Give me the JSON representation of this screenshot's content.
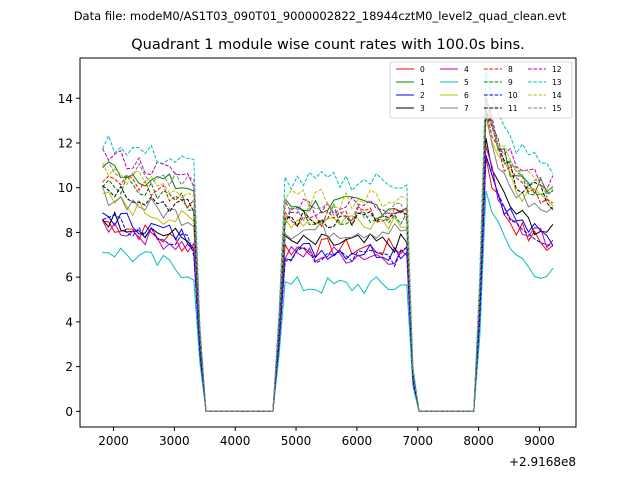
{
  "header": {
    "data_file": "Data file: modeM0/AS1T03_090T01_9000002822_18944cztM0_level2_quad_clean.evt"
  },
  "chart_data": {
    "type": "line",
    "title": "Quadrant 1 module wise count rates with 100.0s bins.",
    "xlabel": "",
    "ylabel": "",
    "x_offset_label": "+2.9168e8",
    "xlim": [
      1450,
      9600
    ],
    "ylim": [
      -0.7,
      15.8
    ],
    "x_ticks": [
      2000,
      3000,
      4000,
      5000,
      6000,
      7000,
      8000,
      9000
    ],
    "x_tick_labels": [
      "2000",
      "3000",
      "4000",
      "5000",
      "6000",
      "7000",
      "8000",
      "9000"
    ],
    "y_ticks": [
      0,
      2,
      4,
      6,
      8,
      10,
      12,
      14
    ],
    "y_tick_labels": [
      "0",
      "2",
      "4",
      "6",
      "8",
      "10",
      "12",
      "14"
    ],
    "grid": false,
    "legend_position": "top-right",
    "segments": [
      {
        "x_start": 1820,
        "x_end": 3320
      },
      {
        "x_start": 4820,
        "x_end": 6820
      },
      {
        "x_start": 8120,
        "x_end": 9220
      }
    ],
    "gap_x": [
      3520,
      4620,
      7020,
      7920
    ],
    "series": [
      {
        "name": "0",
        "color": "#ff0000",
        "dash": "solid",
        "segment_levels": [
          7.4,
          7.3,
          8.5
        ]
      },
      {
        "name": "1",
        "color": "#008000",
        "dash": "solid",
        "segment_levels": [
          9.9,
          9.2,
          10.9
        ]
      },
      {
        "name": "2",
        "color": "#0000ff",
        "dash": "solid",
        "segment_levels": [
          7.7,
          7.2,
          8.8
        ]
      },
      {
        "name": "3",
        "color": "#000000",
        "dash": "solid",
        "segment_levels": [
          7.6,
          7.5,
          9.1
        ]
      },
      {
        "name": "4",
        "color": "#bf00bf",
        "dash": "solid",
        "segment_levels": [
          7.3,
          7.0,
          8.8
        ]
      },
      {
        "name": "5",
        "color": "#00bfbf",
        "dash": "solid",
        "segment_levels": [
          6.2,
          5.6,
          7.2
        ]
      },
      {
        "name": "6",
        "color": "#bfbf00",
        "dash": "solid",
        "segment_levels": [
          8.4,
          8.6,
          10.3
        ]
      },
      {
        "name": "7",
        "color": "#808080",
        "dash": "solid",
        "segment_levels": [
          8.6,
          8.1,
          10.0
        ]
      },
      {
        "name": "8",
        "color": "#ff0000",
        "dash": "dashed",
        "segment_levels": [
          9.5,
          8.7,
          10.6
        ]
      },
      {
        "name": "9",
        "color": "#008000",
        "dash": "dashed",
        "segment_levels": [
          9.3,
          8.8,
          10.8
        ]
      },
      {
        "name": "10",
        "color": "#0000ff",
        "dash": "dashed",
        "segment_levels": [
          7.4,
          6.9,
          8.8
        ]
      },
      {
        "name": "11",
        "color": "#000000",
        "dash": "dashed",
        "segment_levels": [
          9.0,
          8.6,
          10.6
        ]
      },
      {
        "name": "12",
        "color": "#bf00bf",
        "dash": "dashed",
        "segment_levels": [
          10.4,
          9.2,
          11.3
        ]
      },
      {
        "name": "13",
        "color": "#00bfbf",
        "dash": "dashed",
        "segment_levels": [
          11.0,
          10.3,
          12.1
        ]
      },
      {
        "name": "14",
        "color": "#bfbf00",
        "dash": "dashed",
        "segment_levels": [
          9.7,
          9.5,
          11.2
        ]
      },
      {
        "name": "15",
        "color": "#808080",
        "dash": "dashed",
        "segment_levels": [
          10.0,
          8.9,
          11.0
        ]
      }
    ]
  }
}
